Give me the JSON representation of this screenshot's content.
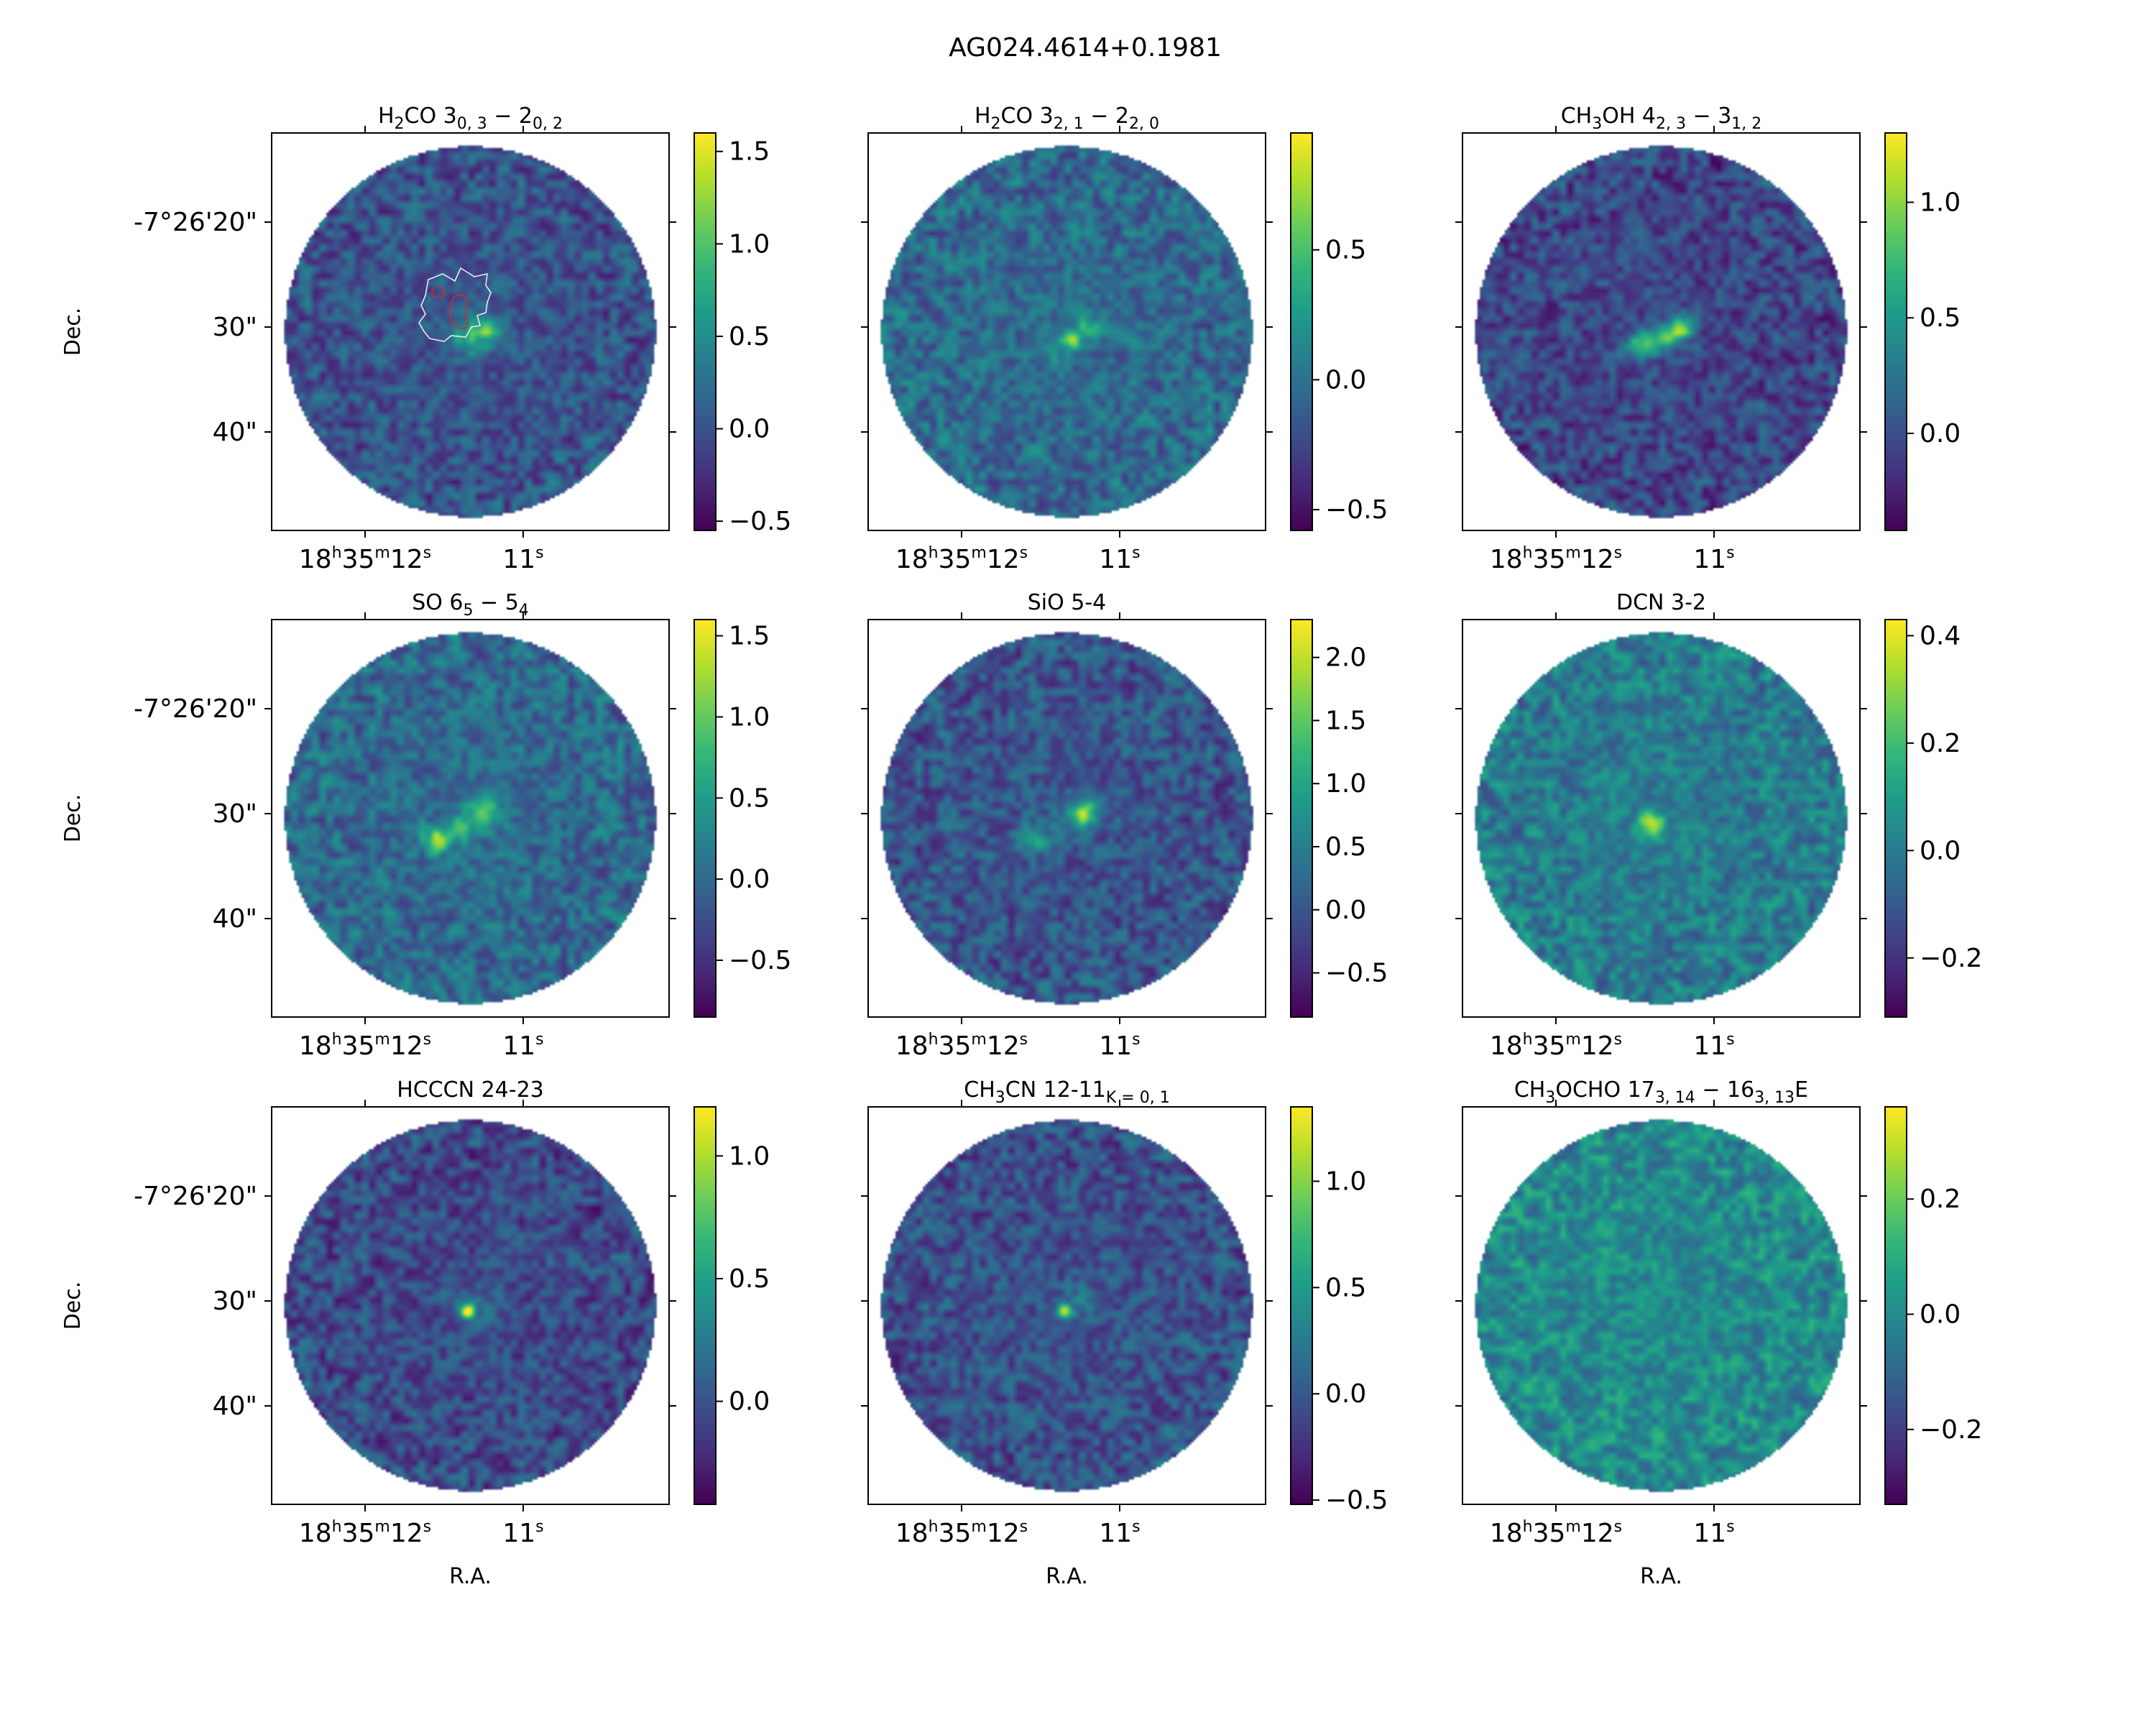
{
  "figure_title": "AG024.4614+0.1981",
  "axes_text": {
    "ylabel": "Dec.",
    "xlabel": "R.A.",
    "dec_ticks": [
      {
        "label": "-7°26'20\"",
        "arcsec": 20
      },
      {
        "label": "30\"",
        "arcsec": 30
      },
      {
        "label": "40\"",
        "arcsec": 40
      }
    ],
    "ra_ticks": [
      {
        "label_html": "18<tspan class=\"sup\" dy=\"-14\">h</tspan><tspan dy=\"14\">35</tspan><tspan class=\"sup\" dy=\"-14\">m</tspan><tspan dy=\"14\">12</tspan><tspan class=\"sup\" dy=\"-14\">s</tspan>",
        "seconds": 12
      },
      {
        "label_html": "11<tspan class=\"sup\" dy=\"-14\">s</tspan>",
        "seconds": 11
      }
    ]
  },
  "colormap": {
    "name": "viridis",
    "stops": [
      "#440154",
      "#482878",
      "#3e4989",
      "#31688e",
      "#26828e",
      "#1f9e89",
      "#35b779",
      "#6ece58",
      "#b5de2b",
      "#fde725"
    ]
  },
  "chart_data": [
    {
      "type": "heatmap",
      "title": "H2CO 3(0,3)-2(0,2)",
      "title_html": "H<tspan class=\"sub\" dy=\"8\">2</tspan><tspan dy=\"-8\">CO 3</tspan><tspan class=\"sub\" dy=\"8\">0, 3</tspan><tspan dy=\"-8\"> − 2</tspan><tspan class=\"sub\" dy=\"8\">0, 2</tspan>",
      "vmin": -0.55,
      "vmax": 1.6,
      "base": 0.0,
      "colorbar_ticks": [
        -0.5,
        0.0,
        0.5,
        1.0,
        1.5
      ],
      "emission": [
        {
          "ra": 11.22,
          "dec": 30,
          "amp": 0.9,
          "sigma_arcsec": 0.8
        },
        {
          "ra": 11.3,
          "dec": 31,
          "amp": 0.5,
          "sigma_arcsec": 1.2
        },
        {
          "ra": 11.4,
          "dec": 31,
          "amp": 0.35,
          "sigma_arcsec": 1.6
        }
      ],
      "contours": true
    },
    {
      "type": "heatmap",
      "title": "H2CO 3(2,1)-2(2,0)",
      "title_html": "H<tspan class=\"sub\" dy=\"8\">2</tspan><tspan dy=\"-8\">CO 3</tspan><tspan class=\"sub\" dy=\"8\">2, 1</tspan><tspan dy=\"-8\"> − 2</tspan><tspan class=\"sub\" dy=\"8\">2, 0</tspan>",
      "vmin": -0.58,
      "vmax": 0.95,
      "base": -0.05,
      "colorbar_ticks": [
        -0.5,
        0.0,
        0.5
      ],
      "emission": [
        {
          "ra": 11.2,
          "dec": 30,
          "amp": 0.45,
          "sigma_arcsec": 0.8
        },
        {
          "ra": 11.3,
          "dec": 31.2,
          "amp": 0.6,
          "sigma_arcsec": 0.6
        },
        {
          "ra": 11.4,
          "dec": 32,
          "amp": 0.25,
          "sigma_arcsec": 1.2
        }
      ]
    },
    {
      "type": "heatmap",
      "title": "CH3OH 4(2,3)-3(1,2)",
      "title_html": "CH<tspan class=\"sub\" dy=\"8\">3</tspan><tspan dy=\"-8\">OH 4</tspan><tspan class=\"sub\" dy=\"8\">2, 3</tspan><tspan dy=\"-8\"> − 3</tspan><tspan class=\"sub\" dy=\"8\">1, 2</tspan>",
      "vmin": -0.42,
      "vmax": 1.3,
      "base": -0.05,
      "colorbar_ticks": [
        0.0,
        0.5,
        1.0
      ],
      "emission": [
        {
          "ra": 11.2,
          "dec": 30,
          "amp": 1.0,
          "sigma_arcsec": 0.8
        },
        {
          "ra": 11.3,
          "dec": 31,
          "amp": 0.8,
          "sigma_arcsec": 0.8
        },
        {
          "ra": 11.42,
          "dec": 31.5,
          "amp": 0.7,
          "sigma_arcsec": 0.9
        },
        {
          "ra": 11.5,
          "dec": 32,
          "amp": 0.5,
          "sigma_arcsec": 0.9
        }
      ]
    },
    {
      "type": "heatmap",
      "title": "SO 6(5)-5(4)",
      "title_html": "SO 6<tspan class=\"sub\" dy=\"8\">5</tspan><tspan dy=\"-8\"> − 5</tspan><tspan class=\"sub\" dy=\"8\">4</tspan>",
      "vmin": -0.85,
      "vmax": 1.6,
      "base": 0.0,
      "colorbar_ticks": [
        -0.5,
        0.0,
        0.5,
        1.0,
        1.5
      ],
      "emission": [
        {
          "ra": 11.25,
          "dec": 30,
          "amp": 1.1,
          "sigma_arcsec": 1.0
        },
        {
          "ra": 11.4,
          "dec": 31.5,
          "amp": 0.8,
          "sigma_arcsec": 0.9
        },
        {
          "ra": 11.55,
          "dec": 32.5,
          "amp": 1.2,
          "sigma_arcsec": 0.9
        }
      ]
    },
    {
      "type": "heatmap",
      "title": "SiO 5-4",
      "title_html": "SiO 5-4",
      "vmin": -0.85,
      "vmax": 2.3,
      "base": 0.0,
      "colorbar_ticks": [
        -0.5,
        0.0,
        0.5,
        1.0,
        1.5,
        2.0
      ],
      "emission": [
        {
          "ra": 11.22,
          "dec": 30,
          "amp": 1.7,
          "sigma_arcsec": 0.9
        },
        {
          "ra": 11.35,
          "dec": 31,
          "amp": 0.5,
          "sigma_arcsec": 1.2
        },
        {
          "ra": 11.55,
          "dec": 32.5,
          "amp": 1.3,
          "sigma_arcsec": 0.9
        }
      ]
    },
    {
      "type": "heatmap",
      "title": "DCN 3-2",
      "title_html": "DCN 3-2",
      "vmin": -0.31,
      "vmax": 0.43,
      "base": 0.0,
      "colorbar_ticks": [
        -0.2,
        0.0,
        0.2,
        0.4
      ],
      "emission": [
        {
          "ra": 11.4,
          "dec": 31,
          "amp": 0.38,
          "sigma_arcsec": 0.8
        }
      ]
    },
    {
      "type": "heatmap",
      "title": "HCCCN 24-23",
      "title_html": "HCCCN 24-23",
      "vmin": -0.42,
      "vmax": 1.2,
      "base": -0.05,
      "colorbar_ticks": [
        0.0,
        0.5,
        1.0
      ],
      "emission": [
        {
          "ra": 11.35,
          "dec": 31,
          "amp": 1.1,
          "sigma_arcsec": 0.5
        },
        {
          "ra": 11.3,
          "dec": 30.5,
          "amp": 0.2,
          "sigma_arcsec": 1.5
        }
      ]
    },
    {
      "type": "heatmap",
      "title": "CH3CN 12-11 K=0,1",
      "title_html": "CH<tspan class=\"sub\" dy=\"8\">3</tspan><tspan dy=\"-8\">CN 12-11</tspan><tspan class=\"sub\" dy=\"8\">K = 0, 1</tspan>",
      "vmin": -0.52,
      "vmax": 1.35,
      "base": -0.05,
      "colorbar_ticks": [
        -0.5,
        0.0,
        0.5,
        1.0
      ],
      "emission": [
        {
          "ra": 11.35,
          "dec": 31,
          "amp": 1.2,
          "sigma_arcsec": 0.5
        },
        {
          "ra": 11.25,
          "dec": 30,
          "amp": 0.25,
          "sigma_arcsec": 1.2
        }
      ]
    },
    {
      "type": "heatmap",
      "title": "CH3OCHO 17(3,14)-16(3,13)E",
      "title_html": "CH<tspan class=\"sub\" dy=\"8\">3</tspan><tspan dy=\"-8\">OCHO 17</tspan><tspan class=\"sub\" dy=\"8\">3, 14</tspan><tspan dy=\"-8\"> − 16</tspan><tspan class=\"sub\" dy=\"8\">3, 13</tspan><tspan dy=\"-8\">E</tspan>",
      "vmin": -0.33,
      "vmax": 0.36,
      "base": 0.0,
      "colorbar_ticks": [
        -0.2,
        0.0,
        0.2
      ],
      "emission": []
    }
  ]
}
